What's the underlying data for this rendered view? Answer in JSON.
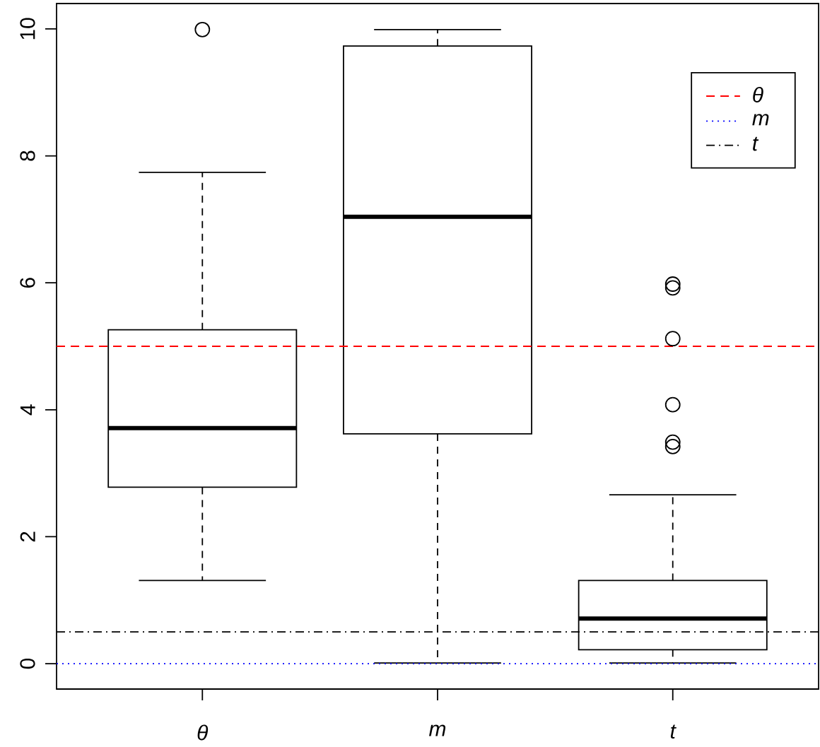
{
  "chart_data": {
    "type": "box",
    "categories": [
      "θ",
      "m",
      "t"
    ],
    "boxes": [
      {
        "low": 1.31,
        "q1": 2.78,
        "median": 3.71,
        "q3": 5.26,
        "high": 7.74,
        "outliers": [
          9.99
        ]
      },
      {
        "low": 0.01,
        "q1": 3.62,
        "median": 7.04,
        "q3": 9.73,
        "high": 9.99
      },
      {
        "low": 0.01,
        "q1": 0.22,
        "median": 0.71,
        "q3": 1.31,
        "high": 2.66,
        "outliers": [
          5.98,
          5.92,
          5.12,
          4.08,
          3.49,
          3.42
        ]
      }
    ],
    "ylim": [
      -0.4,
      10.4
    ],
    "yticks": [
      0,
      2,
      4,
      6,
      8,
      10
    ],
    "ref_lines": [
      {
        "axis": "y",
        "value": 5,
        "label": "θ",
        "color": "#ff0000",
        "line_style": "dashed"
      },
      {
        "axis": "y",
        "value": 0,
        "label": "m",
        "color": "#0000ff",
        "line_style": "dotted"
      },
      {
        "axis": "y",
        "value": 0.5,
        "label": "t",
        "color": "#000000",
        "line_style": "dashdot"
      }
    ],
    "marker": "circle",
    "grid": false,
    "legend": "top right"
  }
}
